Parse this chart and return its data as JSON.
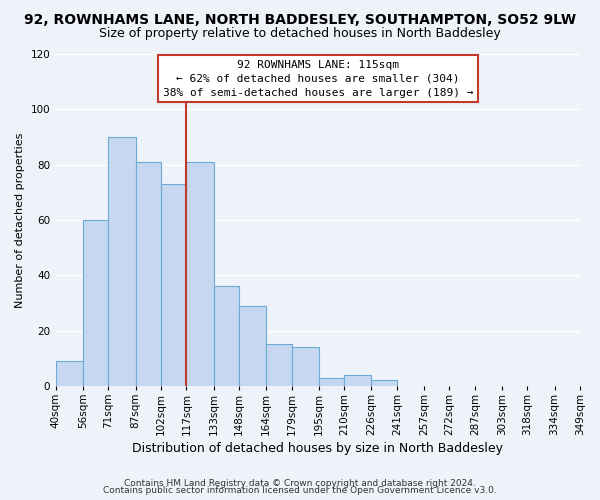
{
  "title": "92, ROWNHAMS LANE, NORTH BADDESLEY, SOUTHAMPTON, SO52 9LW",
  "subtitle": "Size of property relative to detached houses in North Baddesley",
  "bar_heights": [
    9,
    60,
    90,
    81,
    73,
    81,
    36,
    29,
    15,
    14,
    3,
    4,
    2,
    0,
    0,
    0,
    0,
    0,
    0,
    0
  ],
  "bin_edges": [
    40,
    56,
    71,
    87,
    102,
    117,
    133,
    148,
    164,
    179,
    195,
    210,
    226,
    241,
    257,
    272,
    287,
    303,
    318,
    334,
    349
  ],
  "bin_labels": [
    "40sqm",
    "56sqm",
    "71sqm",
    "87sqm",
    "102sqm",
    "117sqm",
    "133sqm",
    "148sqm",
    "164sqm",
    "179sqm",
    "195sqm",
    "210sqm",
    "226sqm",
    "241sqm",
    "257sqm",
    "272sqm",
    "287sqm",
    "303sqm",
    "318sqm",
    "334sqm",
    "349sqm"
  ],
  "bar_color": "#c5d8f0",
  "bar_edge_color": "#6aaad4",
  "vline_x": 117,
  "vline_color": "#c0392b",
  "xlabel": "Distribution of detached houses by size in North Baddesley",
  "ylabel": "Number of detached properties",
  "ylim": [
    0,
    120
  ],
  "yticks": [
    0,
    20,
    40,
    60,
    80,
    100,
    120
  ],
  "annotation_title": "92 ROWNHAMS LANE: 115sqm",
  "annotation_line1": "← 62% of detached houses are smaller (304)",
  "annotation_line2": "38% of semi-detached houses are larger (189) →",
  "annotation_box_color": "#ffffff",
  "annotation_box_edge": "#c0392b",
  "footer1": "Contains HM Land Registry data © Crown copyright and database right 2024.",
  "footer2": "Contains public sector information licensed under the Open Government Licence v3.0.",
  "background_color": "#eef2f9",
  "grid_color": "#ffffff",
  "title_fontsize": 10,
  "subtitle_fontsize": 9,
  "xlabel_fontsize": 9,
  "ylabel_fontsize": 8,
  "tick_fontsize": 7.5,
  "footer_fontsize": 6.5,
  "annotation_fontsize": 8
}
